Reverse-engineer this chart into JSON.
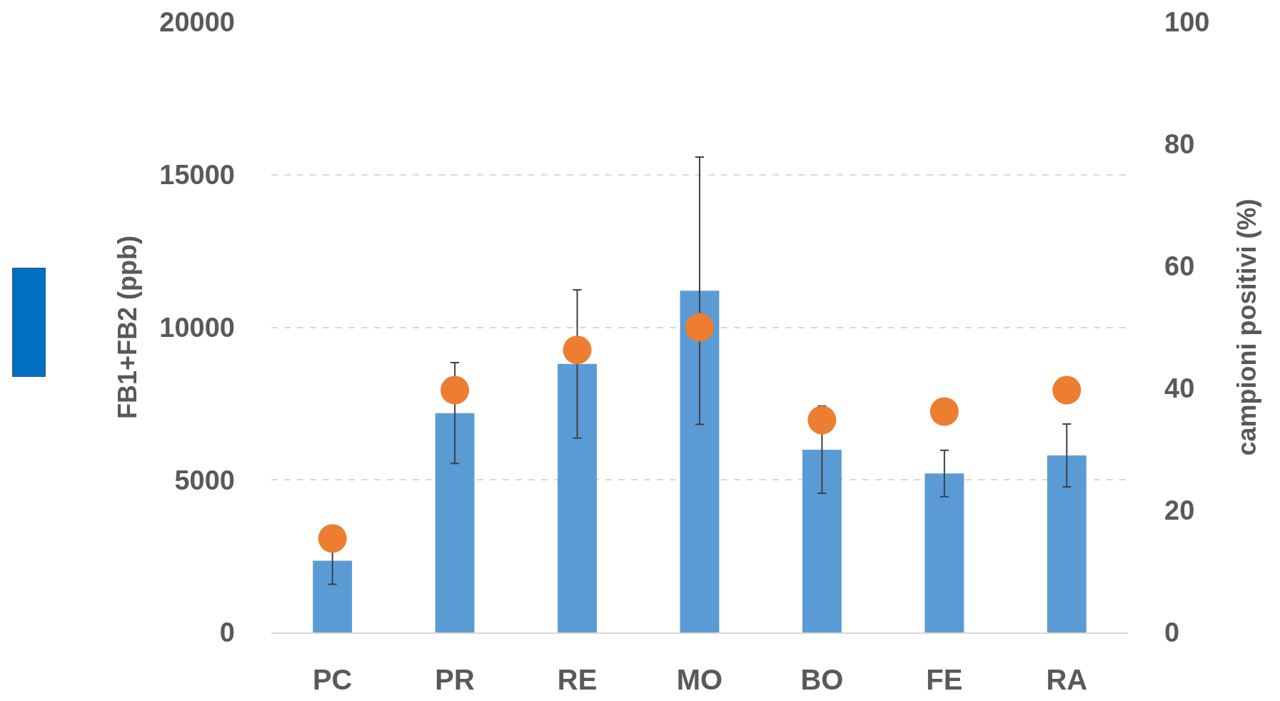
{
  "chart_data": {
    "type": "bar",
    "ylabel": "FB1+FB2 (ppb)",
    "y2label": "campioni positivi (%)",
    "categories": [
      "PC",
      "PR",
      "RE",
      "MO",
      "BO",
      "FE",
      "RA"
    ],
    "series": [
      {
        "type": "bar",
        "color": "#5b9bd5",
        "values": [
          2350,
          7190,
          8800,
          11200,
          5990,
          5210,
          5800
        ],
        "errors": [
          770,
          1650,
          2430,
          4380,
          1430,
          760,
          1030
        ]
      },
      {
        "type": "scatter",
        "axis": "y2",
        "color": "#ed7d31",
        "values": [
          15.4,
          39.7,
          46.3,
          50,
          34.8,
          36.2,
          39.7
        ]
      }
    ],
    "ylim": [
      0,
      20000
    ],
    "yticks": [
      0,
      5000,
      10000,
      15000,
      20000
    ],
    "y2lim": [
      0,
      100
    ],
    "y2ticks": [
      0,
      20,
      40,
      60,
      80,
      100
    ],
    "grid": "y",
    "marker": "circle"
  }
}
